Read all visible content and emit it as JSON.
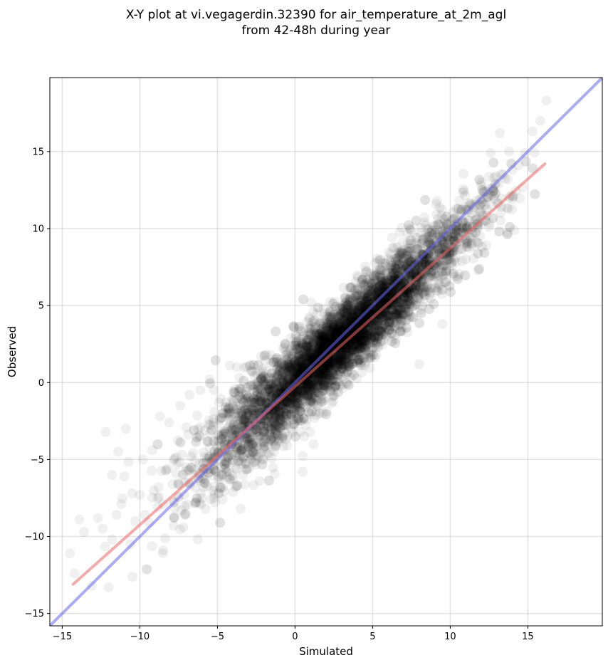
{
  "chart_data": {
    "type": "scatter",
    "title": "X-Y plot at vi.vegagerdin.32390 for air_temperature_at_2m_agl",
    "subtitle": "from 42-48h during year",
    "xlabel": "Simulated",
    "ylabel": "Observed",
    "xlim": [
      -15.8,
      19.8
    ],
    "ylim": [
      -15.8,
      19.8
    ],
    "xticks": [
      -15,
      -10,
      -5,
      0,
      5,
      10,
      15
    ],
    "yticks": [
      -15,
      -10,
      -5,
      0,
      5,
      10,
      15
    ],
    "xtick_labels": [
      "−15",
      "−10",
      "−5",
      "0",
      "5",
      "10",
      "15"
    ],
    "ytick_labels": [
      "−15",
      "−10",
      "−5",
      "0",
      "5",
      "10",
      "15"
    ],
    "grid": true,
    "colors": {
      "points": "#000000",
      "identity_line": "#6666ee",
      "fit_line": "#ee6666"
    },
    "points": {
      "alpha": 0.06,
      "approx_count": 6000,
      "x": [
        -14.5,
        -14.2,
        -13.9,
        -13.6,
        -13.1,
        -12.7,
        -12.4,
        -12.0,
        -11.8,
        -11.5,
        -11.2,
        -11.0,
        -10.6,
        -10.3,
        -10.0,
        -9.7,
        -9.4,
        -9.1,
        -8.8,
        -8.5,
        -8.2,
        -7.9,
        -7.6,
        -7.3,
        -7.0,
        -6.7,
        -6.4,
        -6.1,
        -5.8,
        -5.5,
        -5.2,
        -4.9,
        -4.6,
        -4.3,
        -4.0,
        -3.7,
        -3.4,
        -3.1,
        -2.8,
        -2.5,
        -2.2,
        -1.9,
        -1.6,
        -1.3,
        -1.0,
        -0.7,
        -0.4,
        -0.1,
        0.2,
        0.5,
        0.8,
        1.1,
        1.4,
        1.7,
        2.0,
        2.3,
        2.6,
        2.9,
        3.2,
        3.5,
        3.8,
        4.1,
        4.4,
        4.7,
        5.0,
        5.3,
        5.6,
        5.9,
        6.2,
        6.5,
        6.8,
        7.1,
        7.4,
        7.7,
        8.0,
        8.3,
        8.6,
        8.9,
        9.2,
        9.5,
        9.8,
        10.1,
        10.4,
        10.7,
        11.0,
        11.3,
        11.6,
        11.9,
        12.2,
        12.5,
        12.8,
        13.1,
        13.4,
        13.7,
        14.0,
        14.4,
        14.8,
        15.3,
        15.8,
        16.2,
        -12.2,
        -11.8,
        -11.4,
        -10.9,
        -10.5,
        -9.8,
        -9.2,
        -8.7,
        -8.1,
        -7.4,
        -6.8,
        -6.1,
        -5.5,
        -4.9,
        -4.2,
        -3.6,
        -3.0,
        -2.4,
        -1.8,
        -1.2,
        -0.6,
        0.0,
        0.6,
        1.2,
        1.8,
        2.4,
        3.0,
        3.6,
        4.2,
        4.8,
        5.4,
        6.0,
        6.6,
        7.2,
        7.8,
        8.4,
        9.0,
        9.6,
        10.2,
        10.8,
        11.4,
        12.0,
        12.6,
        13.2,
        13.8,
        -8.5,
        -7.2,
        -6.0,
        -3.5,
        -1.5,
        -0.5,
        0.5,
        1.5,
        2.5,
        3.5,
        6.5,
        8.0,
        9.5,
        11.0,
        12.5,
        0.3,
        0.9,
        1.6,
        2.7,
        3.3,
        4.5,
        5.1,
        5.8,
        6.9,
        7.5
      ],
      "y": [
        -11.1,
        -12.4,
        -8.9,
        -9.7,
        -13.2,
        -8.8,
        -9.5,
        -13.3,
        -10.2,
        -8.6,
        -7.9,
        -6.1,
        -10.5,
        -9.0,
        -7.3,
        -8.6,
        -9.1,
        -7.0,
        -6.8,
        -7.9,
        -5.6,
        -6.6,
        -5.3,
        -4.7,
        -5.5,
        -4.8,
        -3.9,
        -2.9,
        -3.1,
        -3.3,
        -1.9,
        -2.8,
        -3.5,
        -1.6,
        -2.0,
        -1.5,
        -2.8,
        -0.9,
        -1.8,
        -1.2,
        -1.0,
        -0.7,
        -0.9,
        -1.4,
        -1.0,
        -0.8,
        -0.2,
        -0.5,
        0.2,
        -0.1,
        0.4,
        0.8,
        1.5,
        1.3,
        2.2,
        2.4,
        2.0,
        2.8,
        2.6,
        3.5,
        3.4,
        4.0,
        4.6,
        4.3,
        5.1,
        5.6,
        5.2,
        5.9,
        6.3,
        6.2,
        6.8,
        7.3,
        7.0,
        7.6,
        8.1,
        8.7,
        8.4,
        9.0,
        9.6,
        9.2,
        10.1,
        10.5,
        10.0,
        10.8,
        11.2,
        11.6,
        11.4,
        11.9,
        12.4,
        12.6,
        12.1,
        12.9,
        13.5,
        13.2,
        13.8,
        14.1,
        14.9,
        16.3,
        17.0,
        18.3,
        -3.2,
        -6.0,
        -4.5,
        -3.0,
        -7.2,
        -5.0,
        -4.4,
        -2.2,
        -2.6,
        -1.5,
        -0.8,
        -0.5,
        0.2,
        -1.3,
        1.1,
        -0.4,
        -3.8,
        -4.8,
        -4.6,
        1.5,
        1.8,
        2.4,
        -3.5,
        -4.0,
        -2.0,
        -0.3,
        0.9,
        1.7,
        2.3,
        2.8,
        3.4,
        4.5,
        5.2,
        4.1,
        6.3,
        7.8,
        8.0,
        9.2,
        10.6,
        10.5,
        11.0,
        13.0,
        14.9,
        16.2,
        15.0,
        -10.9,
        -9.4,
        -7.5,
        -8.2,
        -4.9,
        -4.1,
        -1.6,
        -0.2,
        0.4,
        1.1,
        2.8,
        1.2,
        3.8,
        8.0,
        10.1,
        1.4,
        -0.8,
        0.6,
        1.5,
        4.0,
        1.1,
        3.9,
        6.2,
        5.1,
        7.8
      ],
      "cloud_center": [
        2.8,
        2.5
      ],
      "cloud_slope": 0.9,
      "cloud_spread": 1.3
    },
    "lines": [
      {
        "name": "identity",
        "color": "#6666ee",
        "alpha": 0.55,
        "x": [
          -15.8,
          19.8
        ],
        "y": [
          -15.8,
          19.8
        ]
      },
      {
        "name": "regression",
        "color": "#ee6666",
        "alpha": 0.55,
        "x": [
          -14.3,
          16.1
        ],
        "y": [
          -13.1,
          14.2
        ]
      }
    ]
  }
}
